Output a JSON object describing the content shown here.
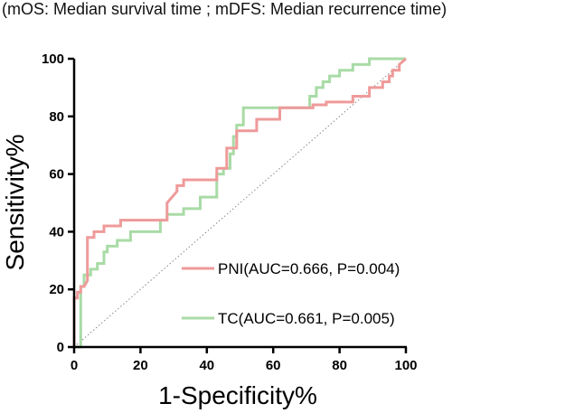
{
  "caption": "(mOS:  Median survival time ; mDFS: Median recurrence time)",
  "chart_data": {
    "type": "line",
    "title": "",
    "xlabel": "1-Specificity%",
    "ylabel": "Sensitivity%",
    "xlim": [
      0,
      100
    ],
    "ylim": [
      0,
      100
    ],
    "xticks": [
      "0",
      "20",
      "40",
      "60",
      "80",
      "100"
    ],
    "yticks": [
      "0",
      "20",
      "40",
      "60",
      "80",
      "100"
    ],
    "reference_line": {
      "name": "chance",
      "x": [
        0,
        100
      ],
      "y": [
        0,
        100
      ],
      "color": "#888888"
    },
    "series": [
      {
        "name": "PNI(AUC=0.666, P=0.004)",
        "color": "#ef9a9a",
        "x": [
          0,
          0,
          1,
          1,
          2,
          2,
          3,
          4,
          4,
          6,
          6,
          9,
          9,
          14,
          14,
          28,
          28,
          31,
          31,
          33,
          33,
          43,
          43,
          46,
          46,
          49,
          49,
          55,
          55,
          62,
          62,
          72,
          72,
          76,
          76,
          84,
          84,
          89,
          89,
          93,
          93,
          95,
          95,
          96,
          96,
          98,
          98,
          100
        ],
        "y": [
          0,
          17,
          17,
          19,
          19,
          21,
          21,
          23,
          38,
          38,
          40,
          40,
          42,
          42,
          44,
          44,
          50,
          54,
          56,
          56,
          58,
          58,
          62,
          62,
          69,
          69,
          75,
          75,
          79,
          79,
          83,
          83,
          84,
          84,
          85,
          85,
          87,
          87,
          90,
          90,
          92,
          92,
          94,
          94,
          96,
          96,
          98,
          100
        ]
      },
      {
        "name": "TC(AUC=0.661, P=0.005)",
        "color": "#a9dba6",
        "x": [
          0,
          2,
          2,
          3,
          3,
          5,
          5,
          7,
          7,
          9,
          9,
          10,
          10,
          13,
          13,
          17,
          17,
          26,
          26,
          28,
          28,
          33,
          33,
          38,
          38,
          43,
          43,
          45,
          45,
          47,
          47,
          48,
          48,
          49,
          49,
          51,
          51,
          71,
          71,
          73,
          73,
          75,
          75,
          77,
          77,
          80,
          80,
          84,
          84,
          89,
          89,
          91,
          91,
          100
        ],
        "y": [
          0,
          0,
          21,
          21,
          25,
          25,
          27,
          27,
          29,
          29,
          33,
          33,
          35,
          35,
          37,
          37,
          40,
          40,
          44,
          44,
          46,
          46,
          48,
          48,
          52,
          52,
          60,
          60,
          62,
          62,
          67,
          67,
          73,
          73,
          77,
          77,
          83,
          83,
          87,
          87,
          90,
          90,
          92,
          92,
          94,
          94,
          96,
          96,
          98,
          98,
          100,
          100,
          100,
          100
        ]
      }
    ]
  }
}
